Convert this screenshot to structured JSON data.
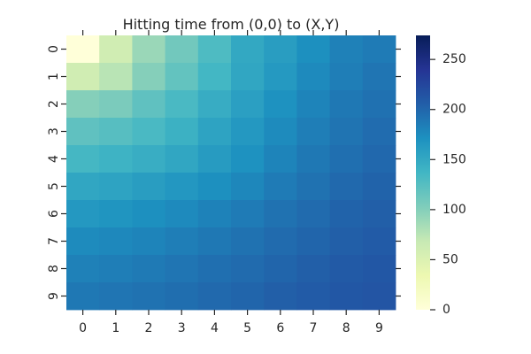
{
  "chart_data": {
    "type": "heatmap",
    "title": "Hitting time from (0,0) to (X,Y)",
    "xlabel": "",
    "ylabel": "",
    "x_ticks": [
      "0",
      "1",
      "2",
      "3",
      "4",
      "5",
      "6",
      "7",
      "8",
      "9"
    ],
    "y_ticks": [
      "0",
      "1",
      "2",
      "3",
      "4",
      "5",
      "6",
      "7",
      "8",
      "9"
    ],
    "colorbar": {
      "ticks": [
        "0",
        "50",
        "100",
        "150",
        "200",
        "250"
      ],
      "range": [
        0,
        274
      ],
      "colormap": "YlGnBu"
    },
    "values": [
      [
        0,
        60,
        90,
        110,
        130,
        150,
        160,
        172,
        182,
        186
      ],
      [
        60,
        75,
        100,
        118,
        136,
        152,
        164,
        176,
        184,
        190
      ],
      [
        100,
        105,
        120,
        132,
        146,
        158,
        170,
        180,
        188,
        193
      ],
      [
        120,
        125,
        132,
        142,
        155,
        165,
        175,
        184,
        191,
        196
      ],
      [
        135,
        140,
        145,
        152,
        162,
        170,
        180,
        188,
        194,
        199
      ],
      [
        152,
        155,
        160,
        166,
        172,
        178,
        186,
        192,
        198,
        202
      ],
      [
        165,
        168,
        172,
        176,
        181,
        186,
        192,
        197,
        202,
        205
      ],
      [
        175,
        177,
        180,
        184,
        188,
        192,
        197,
        201,
        205,
        208
      ],
      [
        182,
        184,
        187,
        190,
        194,
        197,
        201,
        205,
        209,
        211
      ],
      [
        188,
        190,
        192,
        195,
        198,
        201,
        205,
        208,
        211,
        213
      ]
    ]
  }
}
